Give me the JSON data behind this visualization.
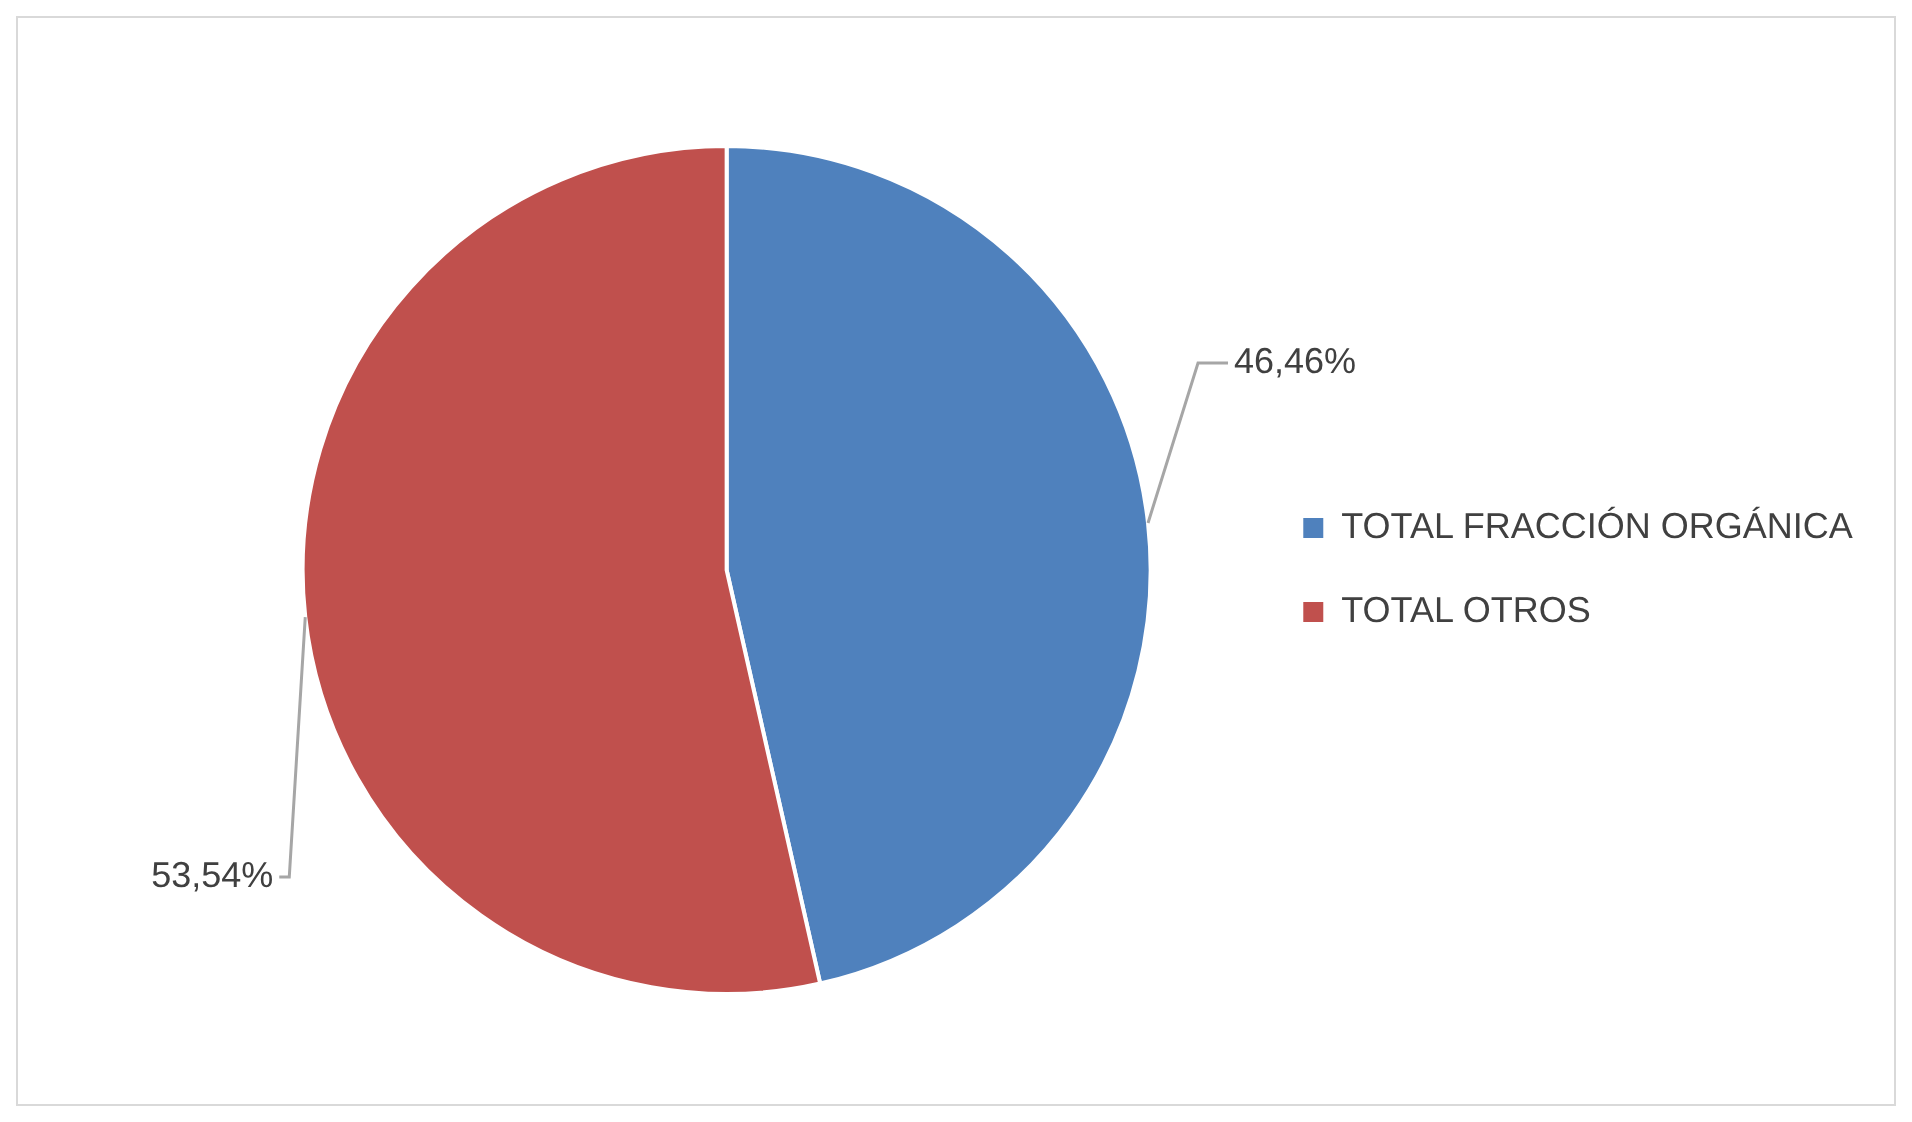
{
  "chart_data": {
    "type": "pie",
    "categories": [
      "TOTAL FRACCIÓN ORGÁNICA",
      "TOTAL OTROS"
    ],
    "values": [
      46.46,
      53.54
    ],
    "colors": [
      "#4f81bd",
      "#c0504d"
    ],
    "value_labels": [
      "46,46%",
      "53,54%"
    ],
    "legend": "right"
  }
}
